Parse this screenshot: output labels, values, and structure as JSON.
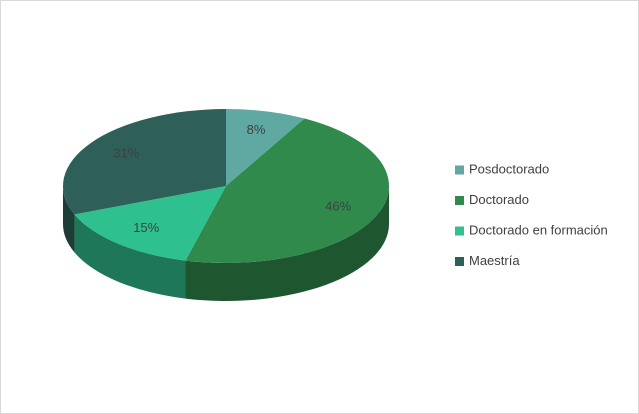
{
  "chart_data": {
    "type": "pie",
    "categories": [
      "Posdoctorado",
      "Doctorado",
      "Doctorado en formación",
      "Maestría"
    ],
    "values": [
      8,
      46,
      15,
      31
    ],
    "value_labels": [
      "8%",
      "46%",
      "15%",
      "31%"
    ],
    "colors": [
      "#5fa9a2",
      "#2f8a4c",
      "#2ec08e",
      "#2f5f59"
    ],
    "legend": "right"
  }
}
